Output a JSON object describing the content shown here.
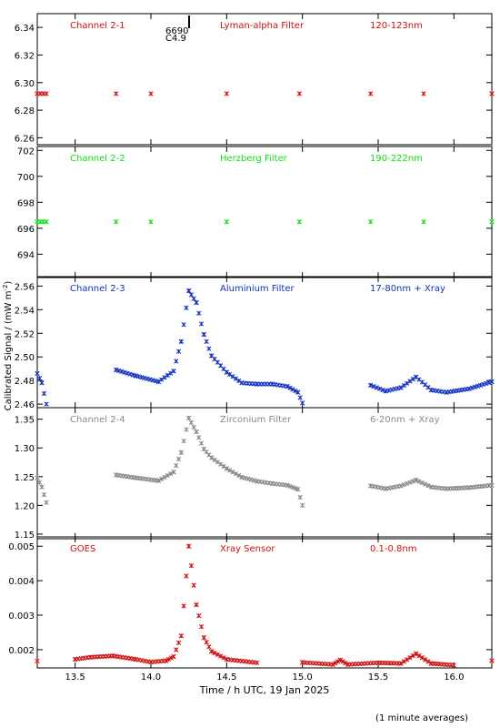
{
  "figure": {
    "ylabel": "Calibrated Signal / (mW m",
    "ylabel_sup": "-2",
    "ylabel_close": ")",
    "xlabel": "Time / h UTC, 19 Jan 2025",
    "footnote": "(1 minute averages)",
    "annotation": {
      "line1": "6690",
      "line2": "C4.9",
      "time": 14.24
    }
  },
  "chart_data": [
    {
      "type": "scatter",
      "name": "channel-2-1",
      "color": "#d01010",
      "labels": [
        "Channel 2-1",
        "Lyman-alpha Filter",
        "120-123nm"
      ],
      "ylim": [
        6.255,
        6.35
      ],
      "yticks": [
        6.26,
        6.28,
        6.3,
        6.32,
        6.34
      ],
      "ytick_labels": [
        "6.26",
        "6.28",
        "6.30",
        "6.32",
        "6.34"
      ],
      "points": [
        [
          13.25,
          6.292
        ],
        [
          13.31,
          6.292
        ],
        [
          13.77,
          6.292
        ],
        [
          14.0,
          6.292
        ],
        [
          14.5,
          6.292
        ],
        [
          14.98,
          6.292
        ],
        [
          15.45,
          6.292
        ],
        [
          15.8,
          6.292
        ],
        [
          16.25,
          6.292
        ]
      ]
    },
    {
      "type": "scatter",
      "name": "channel-2-2",
      "color": "#10e010",
      "labels": [
        "Channel 2-2",
        "Herzberg Filter",
        "190-222nm"
      ],
      "ylim": [
        692.2,
        702.3
      ],
      "yticks": [
        694,
        696,
        698,
        700,
        702
      ],
      "ytick_labels": [
        "694",
        "696",
        "698",
        "700",
        "702"
      ],
      "points": [
        [
          13.25,
          696.5
        ],
        [
          13.31,
          696.5
        ],
        [
          13.77,
          696.5
        ],
        [
          14.0,
          696.5
        ],
        [
          14.5,
          696.5
        ],
        [
          14.98,
          696.5
        ],
        [
          15.45,
          696.5
        ],
        [
          15.8,
          696.5
        ],
        [
          16.25,
          696.5
        ]
      ]
    },
    {
      "type": "scatter",
      "name": "channel-2-3",
      "color": "#1030c0",
      "labels": [
        "Channel 2-3",
        "Aluminium Filter",
        "17-80nm + Xray"
      ],
      "ylim": [
        2.457,
        2.568
      ],
      "yticks": [
        2.46,
        2.48,
        2.5,
        2.52,
        2.54,
        2.56
      ],
      "ytick_labels": [
        "2.46",
        "2.48",
        "2.50",
        "2.52",
        "2.54",
        "2.56"
      ],
      "points": [
        [
          13.25,
          2.486
        ],
        [
          13.28,
          2.478
        ],
        [
          13.31,
          2.46
        ],
        [
          13.77,
          2.489
        ],
        [
          13.9,
          2.484
        ],
        [
          14.05,
          2.479
        ],
        [
          14.15,
          2.488
        ],
        [
          14.2,
          2.513
        ],
        [
          14.25,
          2.556
        ],
        [
          14.3,
          2.546
        ],
        [
          14.35,
          2.519
        ],
        [
          14.4,
          2.501
        ],
        [
          14.5,
          2.487
        ],
        [
          14.6,
          2.478
        ],
        [
          14.7,
          2.477
        ],
        [
          14.8,
          2.477
        ],
        [
          14.9,
          2.475
        ],
        [
          14.97,
          2.47
        ],
        [
          15.0,
          2.461
        ],
        [
          15.45,
          2.476
        ],
        [
          15.55,
          2.471
        ],
        [
          15.65,
          2.474
        ],
        [
          15.75,
          2.483
        ],
        [
          15.85,
          2.472
        ],
        [
          15.95,
          2.47
        ],
        [
          16.1,
          2.473
        ],
        [
          16.25,
          2.479
        ]
      ]
    },
    {
      "type": "scatter",
      "name": "channel-2-4",
      "color": "#888888",
      "labels": [
        "Channel 2-4",
        "Zirconium Filter",
        "6-20nm + Xray"
      ],
      "ylim": [
        1.142,
        1.37
      ],
      "yticks": [
        1.15,
        1.2,
        1.25,
        1.3,
        1.35
      ],
      "ytick_labels": [
        "1.15",
        "1.20",
        "1.25",
        "1.30",
        "1.35"
      ],
      "points": [
        [
          13.25,
          1.248
        ],
        [
          13.28,
          1.232
        ],
        [
          13.31,
          1.205
        ],
        [
          13.77,
          1.253
        ],
        [
          13.9,
          1.248
        ],
        [
          14.05,
          1.243
        ],
        [
          14.15,
          1.258
        ],
        [
          14.2,
          1.292
        ],
        [
          14.25,
          1.352
        ],
        [
          14.3,
          1.328
        ],
        [
          14.35,
          1.298
        ],
        [
          14.4,
          1.283
        ],
        [
          14.5,
          1.264
        ],
        [
          14.6,
          1.249
        ],
        [
          14.7,
          1.242
        ],
        [
          14.8,
          1.238
        ],
        [
          14.9,
          1.235
        ],
        [
          14.97,
          1.228
        ],
        [
          15.0,
          1.2
        ],
        [
          15.45,
          1.234
        ],
        [
          15.55,
          1.229
        ],
        [
          15.65,
          1.234
        ],
        [
          15.75,
          1.244
        ],
        [
          15.85,
          1.232
        ],
        [
          15.95,
          1.229
        ],
        [
          16.1,
          1.231
        ],
        [
          16.25,
          1.235
        ]
      ]
    },
    {
      "type": "scatter",
      "name": "goes",
      "color": "#d01010",
      "labels": [
        "GOES",
        "Xray Sensor",
        "0.1-0.8nm"
      ],
      "ylim": [
        0.00147,
        0.00527
      ],
      "yticks": [
        0.002,
        0.003,
        0.004,
        0.005
      ],
      "ytick_labels": [
        "0.002",
        "0.003",
        "0.004",
        "0.005"
      ],
      "points": [
        [
          13.25,
          0.00167
        ],
        [
          13.5,
          0.00172
        ],
        [
          13.6,
          0.00178
        ],
        [
          13.75,
          0.00182
        ],
        [
          13.9,
          0.00172
        ],
        [
          14.0,
          0.00164
        ],
        [
          14.1,
          0.00168
        ],
        [
          14.15,
          0.0018
        ],
        [
          14.2,
          0.0024
        ],
        [
          14.25,
          0.005
        ],
        [
          14.3,
          0.0033
        ],
        [
          14.35,
          0.00235
        ],
        [
          14.4,
          0.00195
        ],
        [
          14.5,
          0.00172
        ],
        [
          14.7,
          0.00162
        ],
        [
          15.0,
          0.00163
        ],
        [
          15.2,
          0.00157
        ],
        [
          15.25,
          0.0017
        ],
        [
          15.3,
          0.00157
        ],
        [
          15.5,
          0.00162
        ],
        [
          15.65,
          0.0016
        ],
        [
          15.75,
          0.00188
        ],
        [
          15.85,
          0.0016
        ],
        [
          16.0,
          0.00155
        ],
        [
          16.25,
          0.00168
        ]
      ]
    }
  ],
  "x_axis": {
    "xlim": [
      13.25,
      16.25
    ],
    "ticks": [
      13.5,
      14.0,
      14.5,
      15.0,
      15.5,
      16.0
    ],
    "tick_labels": [
      "13.5",
      "14.0",
      "14.5",
      "15.0",
      "15.5",
      "16.0"
    ]
  }
}
